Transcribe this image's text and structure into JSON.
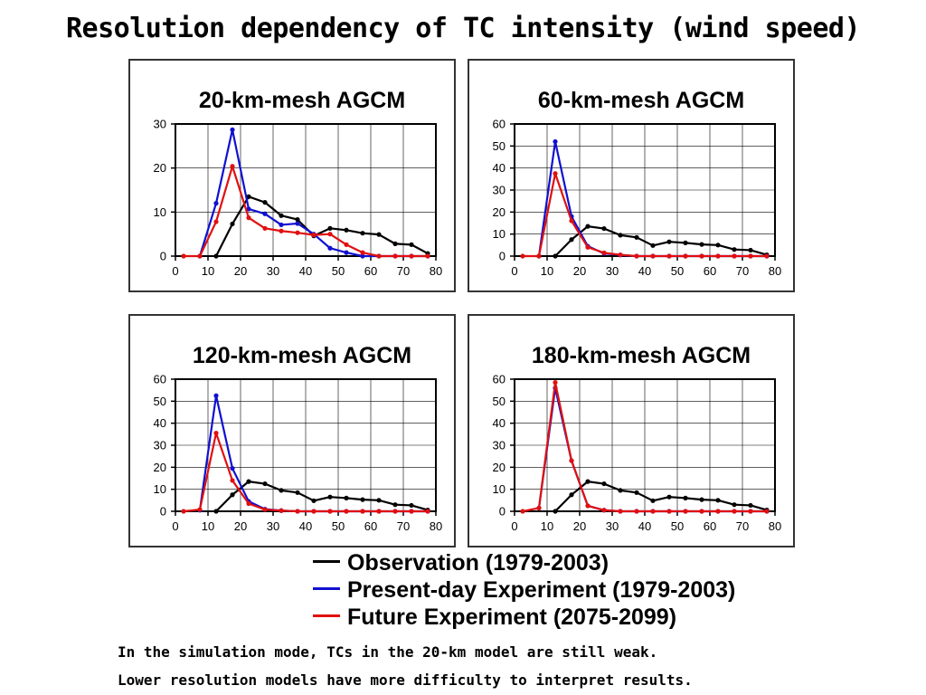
{
  "slide": {
    "title": "Resolution dependency of TC intensity (wind speed)",
    "notes": [
      "In the simulation mode, TCs in the 20-km model are still weak.",
      "Lower resolution models have more difficulty to interpret results."
    ]
  },
  "legend": [
    {
      "label": "Observation (1979-2003)",
      "color": "#000000"
    },
    {
      "label": "Present-day Experiment (1979-2003)",
      "color": "#1010d0"
    },
    {
      "label": "Future Experiment (2075-2099)",
      "color": "#e01010"
    }
  ],
  "chart_data": [
    {
      "type": "line",
      "title": "20-km-mesh AGCM",
      "xlim": [
        0,
        80
      ],
      "ylim": [
        0,
        30
      ],
      "xticks": [
        0,
        10,
        20,
        30,
        40,
        50,
        60,
        70,
        80
      ],
      "yticks": [
        0,
        10,
        20,
        30
      ],
      "grid": true,
      "x": [
        2.5,
        7.5,
        12.5,
        17.5,
        22.5,
        27.5,
        32.5,
        37.5,
        42.5,
        47.5,
        52.5,
        57.5,
        62.5,
        67.5,
        72.5,
        77.5
      ],
      "series": [
        {
          "color": "#000000",
          "start": 2,
          "values": [
            0,
            0,
            0,
            7.3,
            13.5,
            12.2,
            9.2,
            8.3,
            4.6,
            6.3,
            5.9,
            5.2,
            4.9,
            2.8,
            2.6,
            0.6
          ]
        },
        {
          "color": "#1010d0",
          "start": 1,
          "values": [
            0,
            0,
            12,
            28.7,
            10.7,
            9.6,
            7.1,
            7.4,
            5.0,
            1.8,
            0.8,
            0,
            0,
            0,
            0,
            0
          ]
        },
        {
          "color": "#e01010",
          "start": 0,
          "values": [
            0,
            0,
            7.8,
            20.4,
            8.7,
            6.3,
            5.7,
            5.3,
            4.8,
            5.0,
            2.6,
            0.8,
            0,
            0,
            0,
            0
          ]
        }
      ]
    },
    {
      "type": "line",
      "title": "60-km-mesh AGCM",
      "xlim": [
        0,
        80
      ],
      "ylim": [
        0,
        60
      ],
      "xticks": [
        0,
        10,
        20,
        30,
        40,
        50,
        60,
        70,
        80
      ],
      "yticks": [
        0,
        10,
        20,
        30,
        40,
        50,
        60
      ],
      "grid": true,
      "x": [
        2.5,
        7.5,
        12.5,
        17.5,
        22.5,
        27.5,
        32.5,
        37.5,
        42.5,
        47.5,
        52.5,
        57.5,
        62.5,
        67.5,
        72.5,
        77.5
      ],
      "series": [
        {
          "color": "#000000",
          "start": 2,
          "values": [
            0,
            0,
            0,
            7.5,
            13.5,
            12.5,
            9.5,
            8.5,
            4.8,
            6.5,
            6.0,
            5.3,
            5.0,
            3.0,
            2.7,
            0.6
          ]
        },
        {
          "color": "#1010d0",
          "start": 1,
          "values": [
            0,
            0,
            52,
            18,
            4.5,
            1.2,
            0.5,
            0,
            0,
            0,
            0,
            0,
            0,
            0,
            0,
            0
          ]
        },
        {
          "color": "#e01010",
          "start": 0,
          "values": [
            0,
            0,
            37.5,
            16,
            4,
            1.5,
            0.6,
            0,
            0,
            0,
            0,
            0,
            0,
            0,
            0,
            0
          ]
        }
      ]
    },
    {
      "type": "line",
      "title": "120-km-mesh AGCM",
      "xlim": [
        0,
        80
      ],
      "ylim": [
        0,
        60
      ],
      "xticks": [
        0,
        10,
        20,
        30,
        40,
        50,
        60,
        70,
        80
      ],
      "yticks": [
        0,
        10,
        20,
        30,
        40,
        50,
        60
      ],
      "grid": true,
      "x": [
        2.5,
        7.5,
        12.5,
        17.5,
        22.5,
        27.5,
        32.5,
        37.5,
        42.5,
        47.5,
        52.5,
        57.5,
        62.5,
        67.5,
        72.5,
        77.5
      ],
      "series": [
        {
          "color": "#000000",
          "start": 2,
          "values": [
            0,
            0,
            0,
            7.5,
            13.5,
            12.5,
            9.5,
            8.5,
            4.8,
            6.5,
            6.0,
            5.3,
            5.0,
            3.0,
            2.7,
            0.6
          ]
        },
        {
          "color": "#1010d0",
          "start": 1,
          "values": [
            0,
            0.5,
            52.5,
            19.5,
            4.5,
            1.0,
            0.3,
            0,
            0,
            0,
            0,
            0,
            0,
            0,
            0,
            0
          ]
        },
        {
          "color": "#e01010",
          "start": 0,
          "values": [
            0,
            0.8,
            35.5,
            14,
            3.5,
            0.8,
            0.3,
            0,
            0,
            0,
            0,
            0,
            0,
            0,
            0,
            0
          ]
        }
      ]
    },
    {
      "type": "line",
      "title": "180-km-mesh AGCM",
      "xlim": [
        0,
        80
      ],
      "ylim": [
        0,
        60
      ],
      "xticks": [
        0,
        10,
        20,
        30,
        40,
        50,
        60,
        70,
        80
      ],
      "yticks": [
        0,
        10,
        20,
        30,
        40,
        50,
        60
      ],
      "grid": true,
      "x": [
        2.5,
        7.5,
        12.5,
        17.5,
        22.5,
        27.5,
        32.5,
        37.5,
        42.5,
        47.5,
        52.5,
        57.5,
        62.5,
        67.5,
        72.5,
        77.5
      ],
      "series": [
        {
          "color": "#000000",
          "start": 2,
          "values": [
            0,
            0,
            0,
            7.5,
            13.5,
            12.5,
            9.5,
            8.5,
            4.8,
            6.5,
            6.0,
            5.3,
            5.0,
            3.0,
            2.7,
            0.6
          ]
        },
        {
          "color": "#1010d0",
          "start": 1,
          "values": [
            0,
            1.5,
            56,
            23,
            2.5,
            0.5,
            0,
            0,
            0,
            0,
            0,
            0,
            0,
            0,
            0,
            0
          ]
        },
        {
          "color": "#e01010",
          "start": 0,
          "values": [
            0,
            1.5,
            58.5,
            23,
            2.5,
            0.5,
            0,
            0,
            0,
            0,
            0,
            0,
            0,
            0,
            0,
            0
          ]
        }
      ]
    }
  ]
}
